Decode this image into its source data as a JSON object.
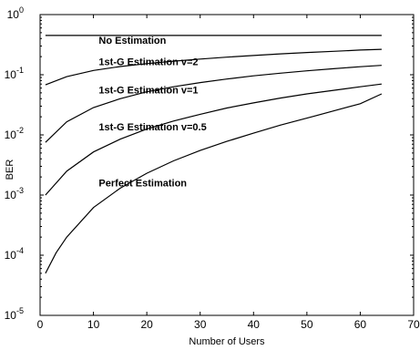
{
  "chart_data": {
    "type": "line",
    "title": "",
    "xlabel": "Number of Users",
    "ylabel": "BER",
    "xlim": [
      0,
      70
    ],
    "ylim": [
      1e-05,
      1
    ],
    "yscale": "log",
    "x_ticks": [
      0,
      10,
      20,
      30,
      40,
      50,
      60,
      70
    ],
    "y_tick_exponents": [
      -5,
      -4,
      -3,
      -2,
      -1,
      0
    ],
    "y_tick_base": "10",
    "grid": false,
    "series": [
      {
        "name": "No Estimation",
        "x": [
          1,
          64
        ],
        "y": [
          0.45,
          0.45
        ]
      },
      {
        "name": "1st-G Estimation v=2",
        "x": [
          1,
          5,
          10,
          15,
          20,
          25,
          30,
          35,
          40,
          45,
          50,
          55,
          60,
          64
        ],
        "y": [
          0.068,
          0.093,
          0.118,
          0.137,
          0.153,
          0.168,
          0.182,
          0.196,
          0.209,
          0.222,
          0.234,
          0.245,
          0.257,
          0.265
        ]
      },
      {
        "name": "1st-G Estimation v=1",
        "x": [
          1,
          5,
          10,
          15,
          20,
          25,
          30,
          35,
          40,
          45,
          50,
          55,
          60,
          64
        ],
        "y": [
          0.0075,
          0.0165,
          0.0285,
          0.04,
          0.052,
          0.063,
          0.074,
          0.085,
          0.096,
          0.106,
          0.116,
          0.126,
          0.136,
          0.143
        ]
      },
      {
        "name": "1st-G Estimation v=0.5",
        "x": [
          1,
          5,
          10,
          15,
          20,
          25,
          30,
          35,
          40,
          45,
          50,
          55,
          60,
          64
        ],
        "y": [
          0.001,
          0.0025,
          0.0052,
          0.0085,
          0.0125,
          0.017,
          0.022,
          0.028,
          0.034,
          0.041,
          0.048,
          0.055,
          0.063,
          0.07
        ]
      },
      {
        "name": "Perfect Estimation",
        "x": [
          1,
          3,
          5,
          10,
          15,
          20,
          25,
          30,
          35,
          40,
          45,
          50,
          55,
          60,
          64
        ],
        "y": [
          5e-05,
          0.00011,
          0.0002,
          0.00062,
          0.0013,
          0.0023,
          0.0037,
          0.0055,
          0.0078,
          0.0107,
          0.0145,
          0.019,
          0.025,
          0.033,
          0.048
        ]
      }
    ],
    "annotations": [
      {
        "text": "No Estimation",
        "x": 11,
        "y": 0.33
      },
      {
        "text": "1st-G Estimation v=2",
        "x": 11,
        "y": 0.145
      },
      {
        "text": "1st-G Estimation v=1",
        "x": 11,
        "y": 0.049
      },
      {
        "text": "1st-G Estimation v=0.5",
        "x": 11,
        "y": 0.012
      },
      {
        "text": "Perfect Estimation",
        "x": 11,
        "y": 0.0014
      }
    ]
  }
}
